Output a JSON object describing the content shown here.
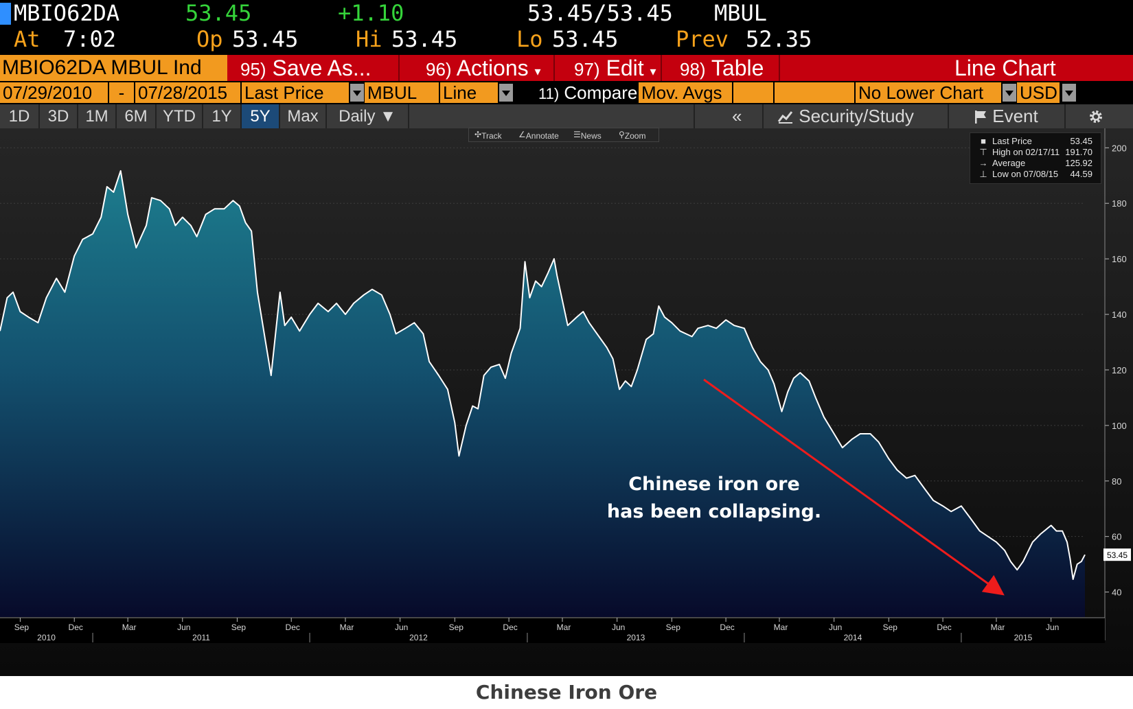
{
  "quote": {
    "ticker": "MBIO62DA",
    "last": "53.45",
    "change": "+1.10",
    "bid_ask": "53.45/53.45",
    "source": "MBUL",
    "at_label": "At",
    "at_time": "7:02",
    "open_label": "Op",
    "open": "53.45",
    "high_label": "Hi",
    "high": "53.45",
    "low_label": "Lo",
    "low": "53.45",
    "prev_label": "Prev",
    "prev": "52.35"
  },
  "actionbar": {
    "security": "MBIO62DA MBUL Ind",
    "save_num": "95)",
    "save_label": "Save As...",
    "actions_num": "96)",
    "actions_label": "Actions",
    "edit_num": "97)",
    "edit_label": "Edit",
    "table_num": "98)",
    "table_label": "Table",
    "view_title": "Line Chart"
  },
  "params": {
    "start_date": "07/29/2010",
    "dash": "-",
    "end_date": "07/28/2015",
    "field": "Last Price",
    "source": "MBUL",
    "chart_type": "Line",
    "compare_num": "11)",
    "compare_label": "Compare",
    "mov_avgs": "Mov. Avgs",
    "lower_chart": "No Lower Chart",
    "currency": "USD"
  },
  "periods": {
    "buttons": [
      "1D",
      "3D",
      "1M",
      "6M",
      "YTD",
      "1Y",
      "5Y",
      "Max"
    ],
    "active": "5Y",
    "frequency": "Daily ▼",
    "collapse": "«",
    "security_study": "Security/Study",
    "event": "Event"
  },
  "toolstrip": {
    "track": "Track",
    "annotate": "Annotate",
    "news": "News",
    "zoom": "Zoom"
  },
  "legend": {
    "last_label": "Last Price",
    "last_value": "53.45",
    "high_label": "High on 02/17/11",
    "high_value": "191.70",
    "avg_label": "Average",
    "avg_value": "125.92",
    "low_label": "Low on 07/08/15",
    "low_value": "44.59"
  },
  "colors": {
    "amber": "#f7a21b",
    "green": "#35d43a",
    "action_red": "#c4000e",
    "line": "#ffffff",
    "fill_top": "#1d7d8e",
    "fill_bottom": "#070a2a",
    "arrow": "#ee1c1c"
  },
  "chart_data": {
    "type": "area",
    "title": "Chinese Iron Ore",
    "annotation": [
      "Chinese iron ore",
      "has been collapsing."
    ],
    "last_price_tag": "53.45",
    "xlim": [
      "2010-07-29",
      "2015-07-28"
    ],
    "ylim": [
      31,
      207
    ],
    "yticks": [
      40,
      60,
      80,
      100,
      120,
      140,
      160,
      180,
      200
    ],
    "month_ticks": [
      {
        "label": "Sep",
        "date": "2010-09-01"
      },
      {
        "label": "Dec",
        "date": "2010-12-01"
      },
      {
        "label": "Mar",
        "date": "2011-03-01"
      },
      {
        "label": "Jun",
        "date": "2011-06-01"
      },
      {
        "label": "Sep",
        "date": "2011-09-01"
      },
      {
        "label": "Dec",
        "date": "2011-12-01"
      },
      {
        "label": "Mar",
        "date": "2012-03-01"
      },
      {
        "label": "Jun",
        "date": "2012-06-01"
      },
      {
        "label": "Sep",
        "date": "2012-09-01"
      },
      {
        "label": "Dec",
        "date": "2012-12-01"
      },
      {
        "label": "Mar",
        "date": "2013-03-01"
      },
      {
        "label": "Jun",
        "date": "2013-06-01"
      },
      {
        "label": "Sep",
        "date": "2013-09-01"
      },
      {
        "label": "Dec",
        "date": "2013-12-01"
      },
      {
        "label": "Mar",
        "date": "2014-03-01"
      },
      {
        "label": "Jun",
        "date": "2014-06-01"
      },
      {
        "label": "Sep",
        "date": "2014-09-01"
      },
      {
        "label": "Dec",
        "date": "2014-12-01"
      },
      {
        "label": "Mar",
        "date": "2015-03-01"
      },
      {
        "label": "Jun",
        "date": "2015-06-01"
      }
    ],
    "year_labels": [
      "2010",
      "2011",
      "2012",
      "2013",
      "2014",
      "2015"
    ],
    "series": [
      {
        "values": [
          [
            "2010-07-29",
            134
          ],
          [
            "2010-08-10",
            146
          ],
          [
            "2010-08-20",
            148
          ],
          [
            "2010-09-01",
            141
          ],
          [
            "2010-09-15",
            139
          ],
          [
            "2010-10-01",
            137
          ],
          [
            "2010-10-15",
            146
          ],
          [
            "2010-11-01",
            153
          ],
          [
            "2010-11-15",
            148
          ],
          [
            "2010-12-01",
            161
          ],
          [
            "2010-12-15",
            167
          ],
          [
            "2011-01-01",
            169
          ],
          [
            "2011-01-15",
            175
          ],
          [
            "2011-01-25",
            186
          ],
          [
            "2011-02-05",
            184
          ],
          [
            "2011-02-17",
            191.7
          ],
          [
            "2011-03-01",
            176
          ],
          [
            "2011-03-15",
            164
          ],
          [
            "2011-04-01",
            172
          ],
          [
            "2011-04-10",
            182
          ],
          [
            "2011-04-25",
            181
          ],
          [
            "2011-05-10",
            178
          ],
          [
            "2011-05-20",
            172
          ],
          [
            "2011-06-01",
            175
          ],
          [
            "2011-06-15",
            172
          ],
          [
            "2011-06-25",
            168
          ],
          [
            "2011-07-10",
            176
          ],
          [
            "2011-07-25",
            178
          ],
          [
            "2011-08-10",
            178
          ],
          [
            "2011-08-25",
            181
          ],
          [
            "2011-09-05",
            179
          ],
          [
            "2011-09-15",
            173
          ],
          [
            "2011-09-25",
            170
          ],
          [
            "2011-10-05",
            148
          ],
          [
            "2011-10-15",
            135
          ],
          [
            "2011-10-28",
            118
          ],
          [
            "2011-11-05",
            134
          ],
          [
            "2011-11-12",
            148
          ],
          [
            "2011-11-20",
            136
          ],
          [
            "2011-12-01",
            139
          ],
          [
            "2011-12-15",
            134
          ],
          [
            "2012-01-01",
            140
          ],
          [
            "2012-01-15",
            144
          ],
          [
            "2012-02-01",
            141
          ],
          [
            "2012-02-15",
            144
          ],
          [
            "2012-03-01",
            140
          ],
          [
            "2012-03-15",
            144
          ],
          [
            "2012-04-01",
            147
          ],
          [
            "2012-04-15",
            149
          ],
          [
            "2012-05-01",
            147
          ],
          [
            "2012-05-15",
            140
          ],
          [
            "2012-05-25",
            133
          ],
          [
            "2012-06-10",
            135
          ],
          [
            "2012-06-25",
            137
          ],
          [
            "2012-07-10",
            133
          ],
          [
            "2012-07-20",
            123
          ],
          [
            "2012-08-05",
            118
          ],
          [
            "2012-08-20",
            113
          ],
          [
            "2012-09-01",
            101
          ],
          [
            "2012-09-08",
            89
          ],
          [
            "2012-09-20",
            100
          ],
          [
            "2012-10-01",
            107
          ],
          [
            "2012-10-10",
            106
          ],
          [
            "2012-10-20",
            118
          ],
          [
            "2012-11-01",
            121
          ],
          [
            "2012-11-15",
            122
          ],
          [
            "2012-11-25",
            117
          ],
          [
            "2012-12-05",
            126
          ],
          [
            "2012-12-20",
            135
          ],
          [
            "2012-12-28",
            159
          ],
          [
            "2013-01-05",
            146
          ],
          [
            "2013-01-15",
            152
          ],
          [
            "2013-01-25",
            150
          ],
          [
            "2013-02-05",
            155
          ],
          [
            "2013-02-15",
            160
          ],
          [
            "2013-02-20",
            154
          ],
          [
            "2013-03-01",
            145
          ],
          [
            "2013-03-10",
            136
          ],
          [
            "2013-03-25",
            139
          ],
          [
            "2013-04-05",
            141
          ],
          [
            "2013-04-15",
            137
          ],
          [
            "2013-04-25",
            134
          ],
          [
            "2013-05-05",
            131
          ],
          [
            "2013-05-15",
            128
          ],
          [
            "2013-05-25",
            124
          ],
          [
            "2013-06-05",
            113
          ],
          [
            "2013-06-15",
            116
          ],
          [
            "2013-06-25",
            114
          ],
          [
            "2013-07-05",
            120
          ],
          [
            "2013-07-20",
            131
          ],
          [
            "2013-08-01",
            133
          ],
          [
            "2013-08-10",
            143
          ],
          [
            "2013-08-20",
            139
          ],
          [
            "2013-09-01",
            137
          ],
          [
            "2013-09-15",
            134
          ],
          [
            "2013-09-25",
            133
          ],
          [
            "2013-10-05",
            132
          ],
          [
            "2013-10-15",
            135
          ],
          [
            "2013-11-01",
            136
          ],
          [
            "2013-11-15",
            135
          ],
          [
            "2013-12-01",
            138
          ],
          [
            "2013-12-15",
            136
          ],
          [
            "2014-01-01",
            135
          ],
          [
            "2014-01-15",
            128
          ],
          [
            "2014-01-28",
            123
          ],
          [
            "2014-02-10",
            120
          ],
          [
            "2014-02-20",
            115
          ],
          [
            "2014-03-05",
            105
          ],
          [
            "2014-03-15",
            112
          ],
          [
            "2014-03-25",
            117
          ],
          [
            "2014-04-05",
            119
          ],
          [
            "2014-04-20",
            116
          ],
          [
            "2014-05-01",
            110
          ],
          [
            "2014-05-15",
            103
          ],
          [
            "2014-06-01",
            97
          ],
          [
            "2014-06-15",
            92
          ],
          [
            "2014-07-01",
            95
          ],
          [
            "2014-07-15",
            97
          ],
          [
            "2014-08-01",
            97
          ],
          [
            "2014-08-15",
            94
          ],
          [
            "2014-09-01",
            88
          ],
          [
            "2014-09-15",
            84
          ],
          [
            "2014-10-01",
            81
          ],
          [
            "2014-10-15",
            82
          ],
          [
            "2014-11-01",
            77
          ],
          [
            "2014-11-15",
            73
          ],
          [
            "2014-12-01",
            71
          ],
          [
            "2014-12-15",
            69
          ],
          [
            "2015-01-01",
            71
          ],
          [
            "2015-01-15",
            67
          ],
          [
            "2015-02-01",
            62
          ],
          [
            "2015-02-15",
            60
          ],
          [
            "2015-03-01",
            58
          ],
          [
            "2015-03-15",
            55
          ],
          [
            "2015-03-25",
            51
          ],
          [
            "2015-04-05",
            48
          ],
          [
            "2015-04-15",
            51
          ],
          [
            "2015-05-01",
            58
          ],
          [
            "2015-05-15",
            61
          ],
          [
            "2015-06-01",
            64
          ],
          [
            "2015-06-10",
            62
          ],
          [
            "2015-06-20",
            62
          ],
          [
            "2015-06-28",
            58
          ],
          [
            "2015-07-03",
            52
          ],
          [
            "2015-07-08",
            44.59
          ],
          [
            "2015-07-15",
            50
          ],
          [
            "2015-07-22",
            51
          ],
          [
            "2015-07-28",
            53.45
          ]
        ]
      }
    ]
  }
}
